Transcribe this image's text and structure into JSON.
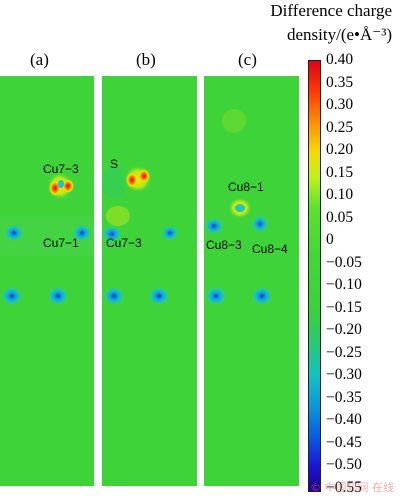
{
  "colorbar": {
    "title_line1": "Difference charge",
    "title_line2": "density/(e•Å⁻³)",
    "ticks": [
      "0.40",
      "0.35",
      "0.30",
      "0.25",
      "0.20",
      "0.15",
      "0.10",
      "0.05",
      "0",
      "−0.05",
      "−0.10",
      "−0.15",
      "−0.20",
      "−0.25",
      "−0.30",
      "−0.35",
      "−0.40",
      "−0.45",
      "−0.50",
      "−0.55"
    ]
  },
  "panels": [
    {
      "label": "(a)",
      "annotations": [
        "Cu7−3",
        "Cu7−1"
      ]
    },
    {
      "label": "(b)",
      "annotations": [
        "S",
        "Cu7−3"
      ]
    },
    {
      "label": "(c)",
      "annotations": [
        "Cu8−1",
        "Cu8−3",
        "Cu8−4"
      ]
    }
  ],
  "watermark": "© 中国知网 在线",
  "colors": {
    "background_field": "#3fd33a"
  }
}
